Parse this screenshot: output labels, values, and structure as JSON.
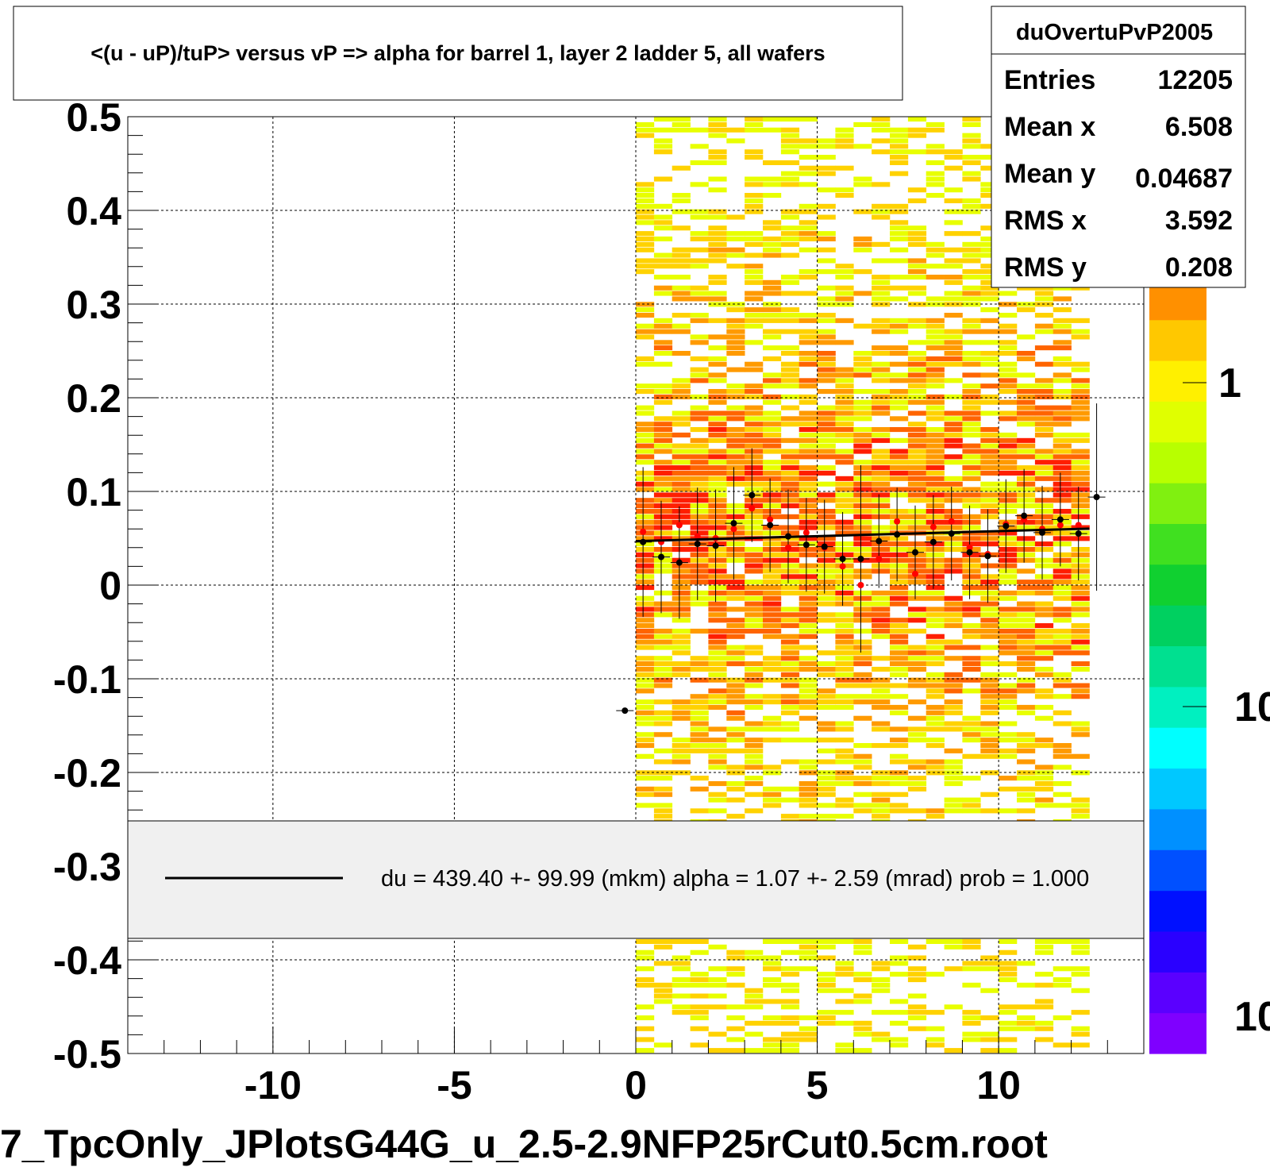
{
  "title": "<(u - uP)/tuP> versus   vP => alpha for barrel 1, layer 2 ladder 5, all wafers",
  "footer": "7_TpcOnly_JPlotsG44G_u_2.5-2.9NFP25rCut0.5cm.root",
  "stats": {
    "name": "duOvertuPvP2005",
    "rows": [
      {
        "label": "Entries",
        "value": "12205"
      },
      {
        "label": "Mean x",
        "value": "6.508"
      },
      {
        "label": "Mean y",
        "value": "0.04687"
      },
      {
        "label": "RMS x",
        "value": "3.592"
      },
      {
        "label": "RMS y",
        "value": "0.208"
      }
    ]
  },
  "legend": {
    "text": "du =  439.40 +- 99.99 (mkm) alpha =    1.07 +-  2.59 (mrad) prob = 1.000"
  },
  "colorbar": {
    "labels": [
      "1",
      "10",
      "10"
    ],
    "colors": [
      "#7f00ff",
      "#5a00ff",
      "#2a00ff",
      "#0010ff",
      "#0050ff",
      "#0090ff",
      "#00c8ff",
      "#00ffff",
      "#00f0c0",
      "#00e090",
      "#00d060",
      "#10d030",
      "#40e020",
      "#80f010",
      "#b8ff00",
      "#e0ff00",
      "#fff000",
      "#ffc800",
      "#ff9000",
      "#ff5000"
    ]
  },
  "chart_data": {
    "type": "heatmap",
    "title": "<(u - uP)/tuP> versus   vP => alpha for barrel 1, layer 2 ladder 5, all wafers",
    "xlim": [
      -14,
      14
    ],
    "ylim": [
      -0.5,
      0.5
    ],
    "x_ticks": [
      -10,
      -5,
      0,
      5,
      10
    ],
    "x_tick_labels": [
      "-10",
      "-5",
      "0",
      "5",
      "10"
    ],
    "y_ticks": [
      0.5,
      0.4,
      0.3,
      0.2,
      0.1,
      0,
      -0.1,
      -0.2,
      -0.3,
      -0.4,
      -0.5
    ],
    "y_tick_labels": [
      "0.5",
      "0.4",
      "0.3",
      "0.2",
      "0.1",
      "0",
      "-0.1",
      "-0.2",
      "-0.3",
      "-0.4",
      "-0.5"
    ],
    "grid": true,
    "heatmap_x_range": [
      0,
      12.5
    ],
    "profile_black": {
      "x": [
        -0.3,
        0.2,
        0.7,
        1.2,
        1.7,
        2.2,
        2.7,
        3.2,
        3.7,
        4.2,
        4.7,
        5.2,
        5.7,
        6.2,
        6.7,
        7.2,
        7.7,
        8.2,
        8.7,
        9.2,
        9.7,
        10.2,
        10.7,
        11.2,
        11.7,
        12.2,
        12.7
      ],
      "y": [
        -0.134,
        0.046,
        0.03,
        0.024,
        0.044,
        0.042,
        0.066,
        0.096,
        0.064,
        0.052,
        0.043,
        0.041,
        0.028,
        0.028,
        0.047,
        0.054,
        0.035,
        0.046,
        0.055,
        0.035,
        0.031,
        0.063,
        0.074,
        0.056,
        0.07,
        0.055,
        0.094
      ],
      "err": [
        0.0,
        0.08,
        0.06,
        0.06,
        0.06,
        0.06,
        0.06,
        0.05,
        0.05,
        0.05,
        0.05,
        0.05,
        0.05,
        0.1,
        0.05,
        0.05,
        0.05,
        0.05,
        0.05,
        0.05,
        0.05,
        0.05,
        0.05,
        0.05,
        0.05,
        0.05,
        0.1
      ]
    },
    "profile_red": {
      "x": [
        0.2,
        0.7,
        1.2,
        1.7,
        2.2,
        2.7,
        3.2,
        3.7,
        4.2,
        4.7,
        5.2,
        5.7,
        6.2,
        6.7,
        7.2,
        7.7,
        8.2,
        8.7,
        9.2,
        9.7,
        10.2,
        10.7,
        11.2,
        11.7,
        12.2
      ],
      "y": [
        0.057,
        0.046,
        0.064,
        0.052,
        0.05,
        0.06,
        0.082,
        0.07,
        0.04,
        0.056,
        0.04,
        0.02,
        0.0,
        0.028,
        0.068,
        0.012,
        0.062,
        0.068,
        0.04,
        0.033,
        0.065,
        0.07,
        0.06,
        0.064,
        0.064
      ]
    },
    "fit_line": {
      "x": [
        0,
        12.5
      ],
      "y": [
        0.0469,
        0.0603
      ]
    }
  }
}
